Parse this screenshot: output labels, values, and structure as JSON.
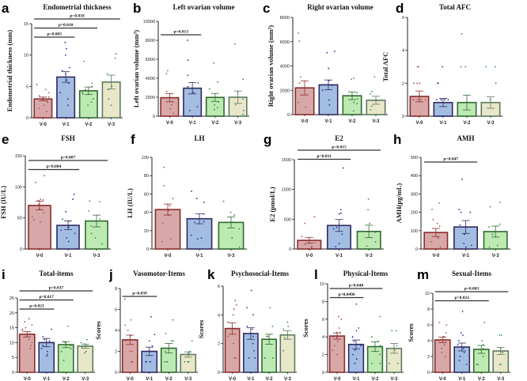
{
  "colors": {
    "V-0": {
      "fill": "#d8a8a8",
      "stroke": "#8a2c2c",
      "dot": "#b05050"
    },
    "V-1": {
      "fill": "#a3bde2",
      "stroke": "#2f2a5e",
      "dot": "#1f2f9a"
    },
    "V-2": {
      "fill": "#bde9b3",
      "stroke": "#2f6a2f",
      "dot": "#3d8a3d"
    },
    "V-3": {
      "fill": "#e9e7c9",
      "stroke": "#5d7a5d",
      "dot": "#2e8a7a"
    }
  },
  "chart_data": [
    {
      "panel": "a",
      "type": "bar",
      "title": "Endometrial thickness",
      "ylabel": "Endometrial thickness (mm)",
      "categories": [
        "V-0",
        "V-1",
        "V-2",
        "V-3"
      ],
      "means": [
        3.0,
        6.5,
        4.3,
        5.7
      ],
      "sem": [
        0.3,
        0.85,
        0.6,
        1.1
      ],
      "ylim": [
        0,
        15
      ],
      "yticks": [
        0,
        5,
        10,
        15
      ],
      "points": [
        [
          5.3,
          4.5,
          4,
          3.5,
          3.3,
          3,
          2.7,
          2.5,
          2,
          1.5,
          1
        ],
        [
          12,
          11,
          10,
          8,
          7.5,
          7,
          6,
          5.5,
          4,
          3,
          2
        ],
        [
          9,
          5.5,
          5,
          4.5,
          4,
          3.8,
          3,
          2.5,
          2
        ],
        [
          10.2,
          9.5,
          7,
          5,
          4.5,
          3,
          2
        ]
      ],
      "significance": [
        {
          "label": "p=0.018",
          "from": 0,
          "to": 3
        },
        {
          "label": "p=0.010",
          "from": 0,
          "to": 2
        },
        {
          "label": "p=0.003",
          "from": 0,
          "to": 1
        }
      ]
    },
    {
      "panel": "b",
      "type": "bar",
      "title": "Left ovarian volume",
      "ylabel": "Left ovarian volume (mm³)",
      "categories": [
        "V-0",
        "V-1",
        "V-2",
        "V-3"
      ],
      "means": [
        1950,
        2950,
        1980,
        2000
      ],
      "sem": [
        430,
        600,
        420,
        650
      ],
      "ylim": [
        0,
        10000
      ],
      "yticks": [
        0,
        2000,
        4000,
        6000,
        8000,
        10000
      ],
      "points": [
        [
          4800,
          4500,
          2600,
          1900,
          1500,
          1200,
          800,
          300
        ],
        [
          8000,
          5900,
          4300,
          3500,
          3100,
          2500,
          1000,
          600
        ],
        [
          5600,
          3600,
          2900,
          2000,
          1500,
          1200,
          900,
          700
        ],
        [
          7600,
          3900,
          2500,
          1800,
          1200,
          600,
          200
        ]
      ],
      "significance": [
        {
          "label": "p=0.013",
          "from": 0,
          "to": 1
        }
      ]
    },
    {
      "panel": "c",
      "type": "bar",
      "title": "Right ovarian volume",
      "ylabel": "Right ovarian volume (mm³)",
      "categories": [
        "V-0",
        "V-1",
        "V-2",
        "V-3"
      ],
      "means": [
        2200,
        2450,
        1550,
        1180
      ],
      "sem": [
        580,
        400,
        320,
        330
      ],
      "ylim": [
        0,
        8000
      ],
      "yticks": [
        0,
        2000,
        4000,
        6000,
        8000
      ],
      "points": [
        [
          6700,
          6050,
          3100,
          2600,
          1600,
          1000,
          600
        ],
        [
          5200,
          5100,
          3800,
          2800,
          2400,
          2000,
          1200,
          800
        ],
        [
          2900,
          3000,
          1800,
          1300,
          1000,
          900,
          300
        ],
        [
          3100,
          1900,
          1700,
          1200,
          700,
          400
        ]
      ],
      "significance": []
    },
    {
      "panel": "d",
      "type": "bar",
      "title": "Total AFC",
      "ylabel": "Total AFC",
      "categories": [
        "V-0",
        "V-1",
        "V-2",
        "V-3"
      ],
      "means": [
        1.2,
        0.83,
        0.83,
        0.83
      ],
      "sem": [
        0.33,
        0.25,
        0.45,
        0.35
      ],
      "ylim": [
        0,
        6
      ],
      "yticks": [
        0,
        2,
        4,
        6
      ],
      "points": [
        [
          3,
          3,
          2,
          2,
          2,
          1,
          1,
          1,
          1,
          1,
          0,
          0
        ],
        [
          3,
          2,
          2,
          1,
          1,
          1,
          1,
          1,
          0,
          0,
          0
        ],
        [
          5,
          3,
          3,
          0,
          0,
          0
        ],
        [
          3,
          3,
          2,
          1,
          0,
          0
        ]
      ],
      "significance": []
    },
    {
      "panel": "e",
      "type": "bar",
      "title": "FSH",
      "ylabel": "FSH (IU/L)",
      "categories": [
        "V-0",
        "V-1",
        "V-3"
      ],
      "means": [
        70,
        38,
        45
      ],
      "sem": [
        7,
        7,
        9.5
      ],
      "ylim": [
        0,
        150
      ],
      "yticks": [
        0,
        50,
        100,
        150
      ],
      "points": [
        [
          118,
          107,
          80,
          79,
          78,
          72,
          65,
          58,
          52,
          47,
          43
        ],
        [
          88,
          80,
          60,
          48,
          45,
          38,
          35,
          30,
          25,
          18,
          12
        ],
        [
          77,
          76,
          61,
          48,
          37,
          25,
          18,
          8
        ]
      ],
      "significance": [
        {
          "label": "p=0.007",
          "from": 0,
          "to": 2
        },
        {
          "label": "p=0.004",
          "from": 0,
          "to": 1
        }
      ]
    },
    {
      "panel": "f",
      "type": "bar",
      "title": "LH",
      "ylabel": "LH (IU/L)",
      "categories": [
        "V-0",
        "V-1",
        "V-3"
      ],
      "means": [
        43,
        33,
        29
      ],
      "sem": [
        6,
        5.5,
        6
      ],
      "ylim": [
        0,
        100
      ],
      "yticks": [
        0,
        20,
        40,
        60,
        80,
        100
      ],
      "points": [
        [
          89,
          69,
          55,
          47,
          42,
          37,
          28,
          11,
          8
        ],
        [
          63,
          55,
          51,
          38,
          30,
          29,
          15,
          12,
          11
        ],
        [
          52,
          40,
          37,
          22,
          12,
          2
        ]
      ],
      "significance": []
    },
    {
      "panel": "g",
      "type": "bar",
      "title": "E2",
      "ylabel": "E2 (pmol/L)",
      "categories": [
        "V-0",
        "V-1",
        "V-3"
      ],
      "means": [
        145,
        395,
        295
      ],
      "sem": [
        50,
        100,
        105
      ],
      "ylim": [
        0,
        1500
      ],
      "yticks": [
        0,
        500,
        1000,
        1500
      ],
      "points": [
        [
          540,
          430,
          210,
          150,
          110,
          80,
          40,
          20
        ],
        [
          1360,
          660,
          600,
          590,
          360,
          340,
          250,
          90,
          40
        ],
        [
          840,
          660,
          430,
          280,
          120,
          50
        ]
      ],
      "significance": [
        {
          "label": "p=0.015",
          "from": 0,
          "to": 2
        },
        {
          "label": "p=0.011",
          "from": 0,
          "to": 1
        }
      ]
    },
    {
      "panel": "h",
      "type": "bar",
      "title": "AMH",
      "ylabel": "AMH(pg/mL)",
      "categories": [
        "V-0",
        "V-1",
        "V-3"
      ],
      "means": [
        90,
        120,
        95
      ],
      "sem": [
        22,
        35,
        30
      ],
      "ylim": [
        0,
        500
      ],
      "yticks": [
        0,
        100,
        200,
        300,
        400,
        500
      ],
      "points": [
        [
          250,
          215,
          160,
          140,
          125,
          90,
          60,
          40,
          10
        ],
        [
          380,
          215,
          200,
          200,
          130,
          80,
          30,
          20,
          10
        ],
        [
          255,
          230,
          135,
          120,
          80,
          20,
          10
        ]
      ],
      "significance": [
        {
          "label": "p=0.047",
          "from": 0,
          "to": 1
        }
      ]
    },
    {
      "panel": "i",
      "type": "bar",
      "title": "Total-items",
      "ylabel": "Scores",
      "categories": [
        "V-0",
        "V-1",
        "V-2",
        "V-3"
      ],
      "means": [
        12.8,
        10.0,
        9.3,
        8.8
      ],
      "sem": [
        0.9,
        1.4,
        1.0,
        0.7
      ],
      "ylim": [
        0,
        25
      ],
      "yticks": [
        0,
        5,
        10,
        15,
        20,
        25
      ],
      "points": [
        [
          18,
          17,
          16,
          15,
          14.5,
          14,
          13,
          12,
          11,
          10,
          9,
          8
        ],
        [
          14.5,
          12,
          11,
          10.5,
          10,
          9,
          8,
          7,
          6,
          5.5
        ],
        [
          15.5,
          10.3,
          10,
          9,
          8,
          7,
          4
        ],
        [
          11,
          10,
          9.5,
          9,
          8.5,
          7,
          6.5
        ]
      ],
      "significance": [
        {
          "label": "p=0.037",
          "from": 0,
          "to": 3
        },
        {
          "label": "p=0.017",
          "from": 0,
          "to": 2
        },
        {
          "label": "p=0.021",
          "from": 0,
          "to": 1
        }
      ]
    },
    {
      "panel": "j",
      "type": "bar",
      "title": "Vasomotor-Items",
      "ylabel": "Scores",
      "categories": [
        "V-0",
        "V-1",
        "V-2",
        "V-3"
      ],
      "means": [
        3.1,
        2.0,
        2.3,
        1.7
      ],
      "sem": [
        0.45,
        0.4,
        0.45,
        0.25
      ],
      "ylim": [
        0,
        8
      ],
      "yticks": [
        0,
        2,
        4,
        6,
        8
      ],
      "points": [
        [
          7,
          5,
          4.5,
          4,
          3.5,
          3,
          2,
          2,
          1,
          1
        ],
        [
          5.3,
          3.6,
          3,
          2.5,
          2,
          1,
          1,
          1,
          1,
          1
        ],
        [
          5,
          3.7,
          3,
          3,
          2,
          1,
          1,
          1
        ],
        [
          3,
          2,
          1.8,
          1,
          1,
          1
        ]
      ],
      "significance": [
        {
          "label": "p=0.039",
          "from": 0,
          "to": 1
        }
      ]
    },
    {
      "panel": "k",
      "type": "bar",
      "title": "Psychosocial-Items",
      "ylabel": "Scores",
      "categories": [
        "V-0",
        "V-1",
        "V-2",
        "V-3"
      ],
      "means": [
        3.05,
        2.7,
        2.3,
        2.6
      ],
      "sem": [
        0.4,
        0.4,
        0.35,
        0.3
      ],
      "ylim": [
        0,
        6
      ],
      "yticks": [
        0,
        2,
        4,
        6
      ],
      "points": [
        [
          5,
          4.7,
          4.4,
          4,
          3.5,
          3,
          2.5,
          2,
          1,
          1
        ],
        [
          5.7,
          4.5,
          4,
          3.2,
          3,
          2.5,
          2,
          1.5,
          1,
          1
        ],
        [
          4.5,
          3.2,
          2.5,
          2.5,
          1,
          1,
          1
        ],
        [
          3.5,
          3.2,
          3,
          2.6,
          2.4,
          1.5
        ]
      ],
      "significance": []
    },
    {
      "panel": "l",
      "type": "bar",
      "title": "Physical-Items",
      "ylabel": "Scores",
      "categories": [
        "V-0",
        "V-1",
        "V-2",
        "V-3"
      ],
      "means": [
        4.1,
        3.15,
        2.9,
        2.7
      ],
      "sem": [
        0.35,
        0.5,
        0.55,
        0.55
      ],
      "ylim": [
        0,
        10
      ],
      "yticks": [
        0,
        2,
        4,
        6,
        8,
        10
      ],
      "points": [
        [
          6.3,
          6,
          5,
          4.5,
          4.5,
          4,
          4,
          3.5,
          3,
          2.5,
          2
        ],
        [
          7.7,
          5,
          4.7,
          4,
          3.5,
          3,
          2.5,
          2,
          1.5,
          1
        ],
        [
          6.3,
          4,
          3.5,
          3,
          2,
          1,
          1
        ],
        [
          4.7,
          4.7,
          3,
          2.5,
          1,
          1
        ]
      ],
      "significance": [
        {
          "label": "p=0.048",
          "from": 0,
          "to": 2
        },
        {
          "label": "p=0.0496",
          "from": 0,
          "to": 1
        }
      ]
    },
    {
      "panel": "m",
      "type": "bar",
      "title": "Sexual-Items",
      "ylabel": "Scores",
      "categories": [
        "V-0",
        "V-1",
        "V-2",
        "V-3"
      ],
      "means": [
        4.1,
        3.2,
        2.9,
        2.7
      ],
      "sem": [
        0.35,
        0.5,
        0.5,
        0.45
      ],
      "ylim": [
        0,
        10
      ],
      "yticks": [
        0,
        2,
        4,
        6,
        8,
        10
      ],
      "points": [
        [
          6.3,
          6,
          5,
          4.5,
          4.5,
          4,
          4,
          3.5,
          3,
          2.5,
          2
        ],
        [
          7.7,
          5,
          4.7,
          4,
          3.5,
          3,
          2.5,
          2,
          1.5,
          1
        ],
        [
          6.3,
          4,
          3.5,
          3,
          2,
          1,
          1
        ],
        [
          4.7,
          4.7,
          3,
          2.5,
          1,
          1
        ]
      ],
      "significance": [
        {
          "label": "p=0.003",
          "from": 0,
          "to": 3
        },
        {
          "label": "p=0.022",
          "from": 0,
          "to": 2
        }
      ]
    }
  ]
}
